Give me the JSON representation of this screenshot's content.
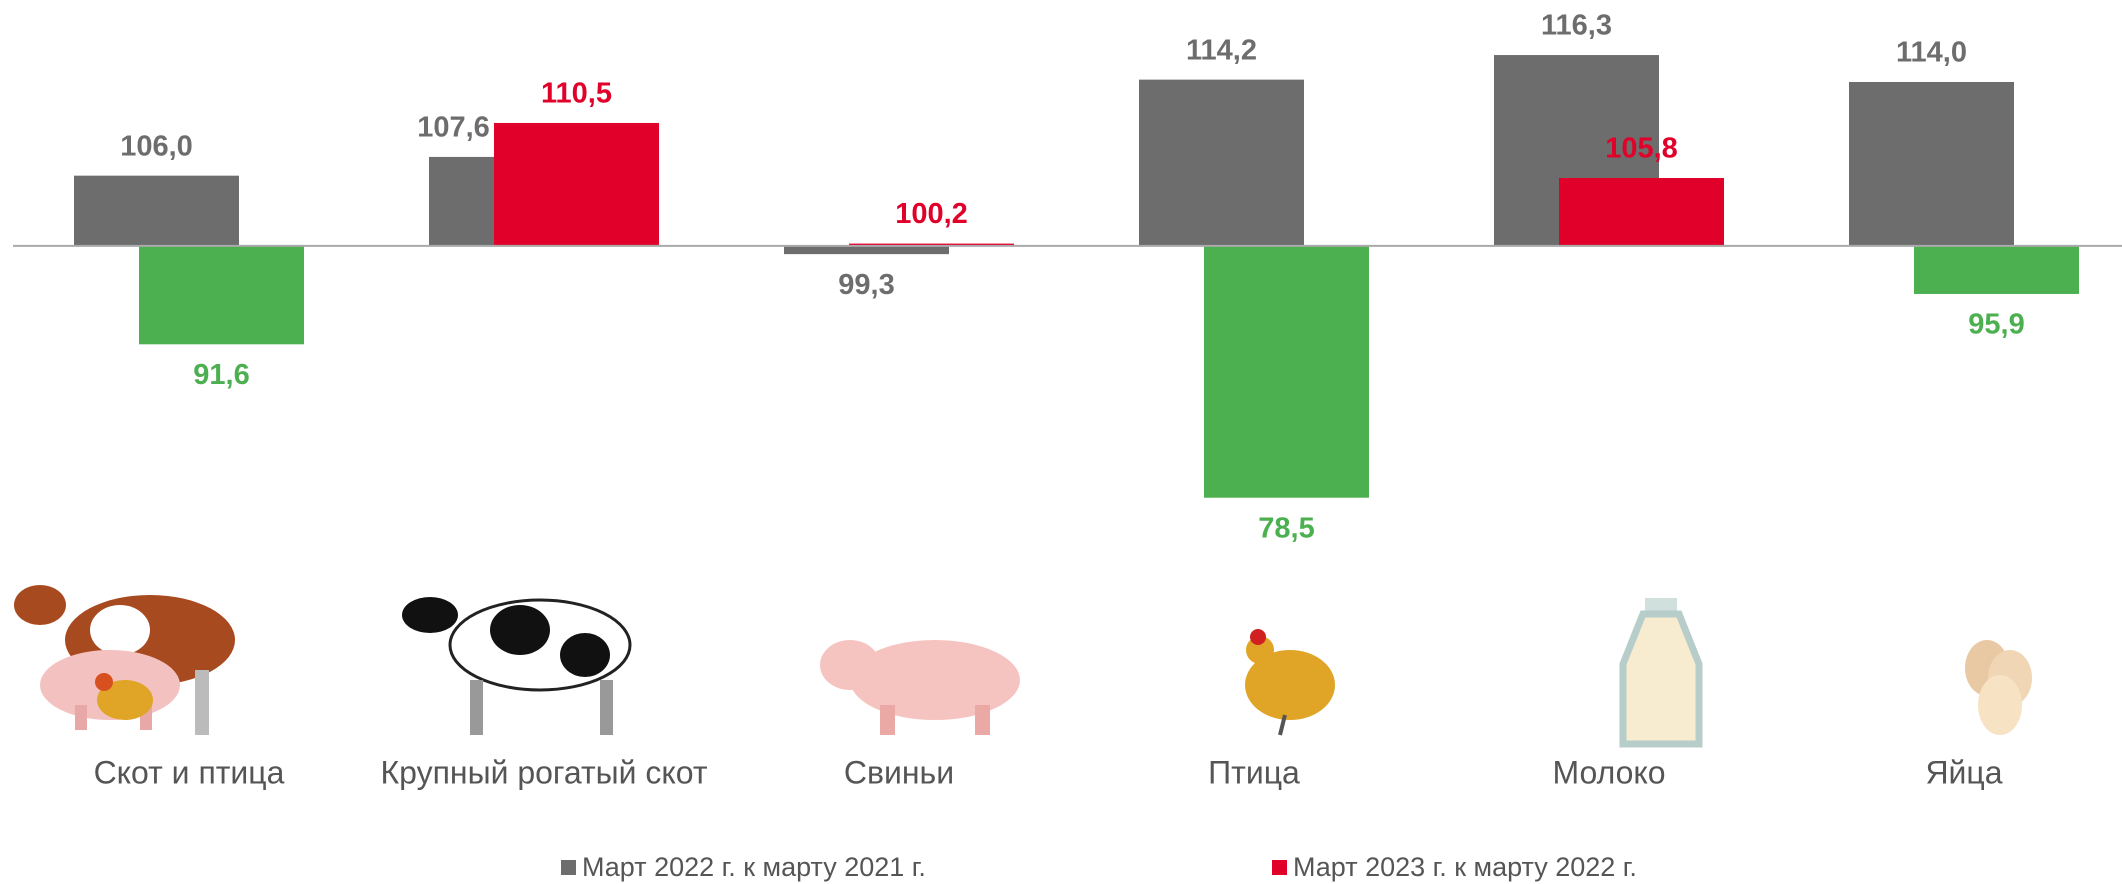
{
  "chart_data": {
    "type": "bar",
    "categories": [
      "Скот и птица",
      "Крупный рогатый скот",
      "Свиньи",
      "Птица",
      "Молоко",
      "Яйца"
    ],
    "baseline": 100,
    "ylim": [
      76,
      121
    ],
    "series": [
      {
        "name": "Март 2022 г. к марту 2021 г.",
        "color": "#6d6d6d",
        "values": [
          106.0,
          107.6,
          99.3,
          114.2,
          116.3,
          114.0
        ],
        "value_labels": [
          "106,0",
          "107,6",
          "99,3",
          "114,2",
          "116,3",
          "114,0"
        ]
      },
      {
        "name": "Март 2023 г. к марту 2022 г.",
        "color": "#e0002a",
        "below_color": "#4caf50",
        "values": [
          91.6,
          110.5,
          100.2,
          78.5,
          105.8,
          95.9
        ],
        "value_labels": [
          "91,6",
          "110,5",
          "100,2",
          "78,5",
          "105,8",
          "95,9"
        ]
      }
    ],
    "legend": "bottom"
  }
}
